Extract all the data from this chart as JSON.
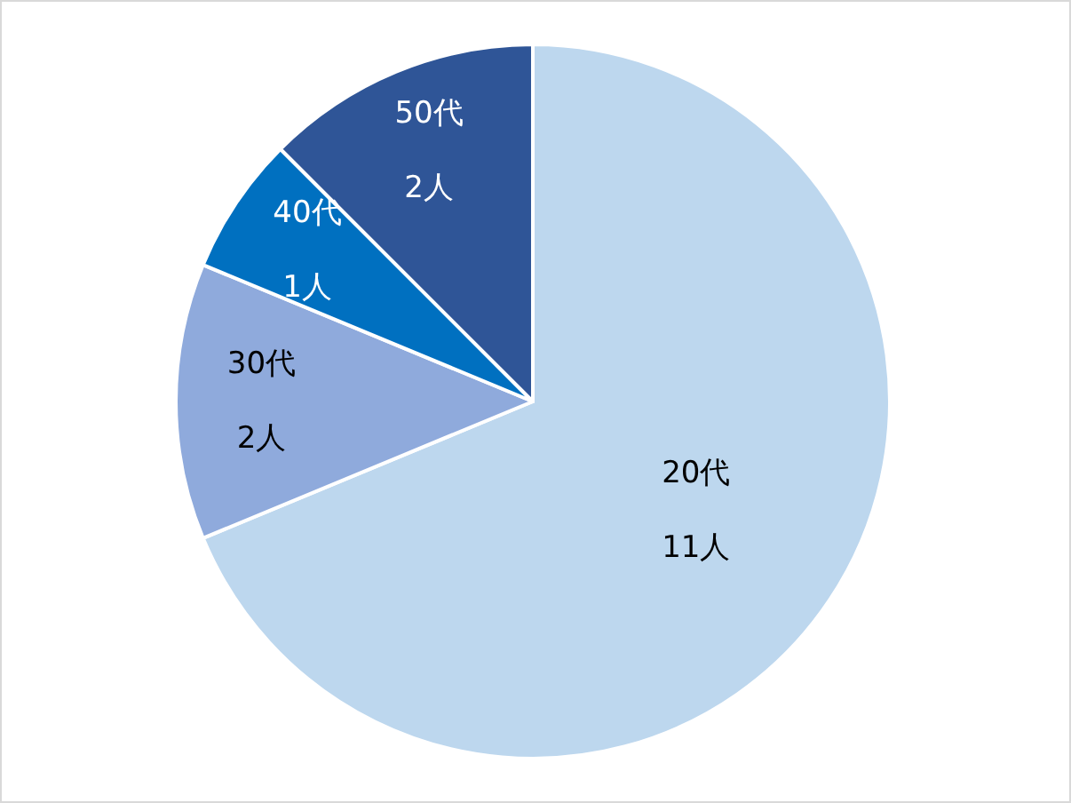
{
  "chart_data": {
    "type": "pie",
    "categories": [
      "20代",
      "30代",
      "40代",
      "50代"
    ],
    "values": [
      11,
      2,
      1,
      2
    ],
    "colors": [
      "#bdd7ee",
      "#8faadc",
      "#0070c0",
      "#2f5597"
    ],
    "value_labels": [
      "11人",
      "2人",
      "1人",
      "2人"
    ]
  }
}
